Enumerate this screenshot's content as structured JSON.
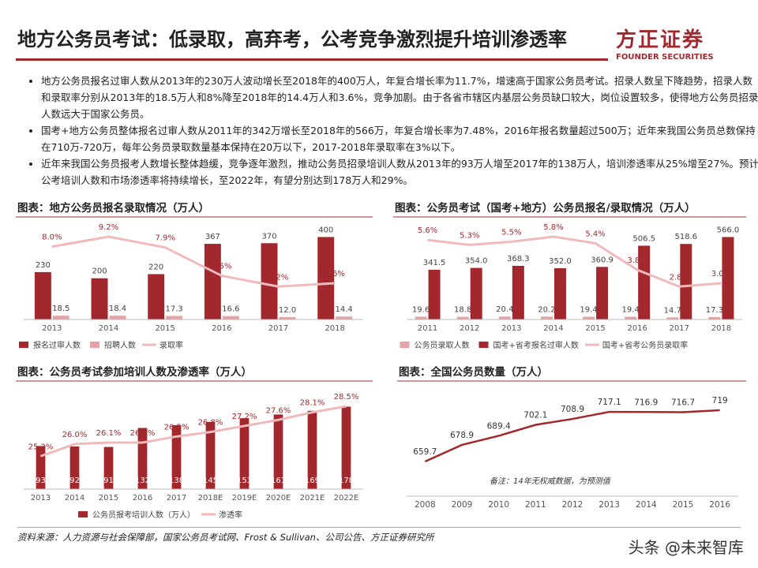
{
  "header": {
    "title": "地方公务员考试：低录取，高弃考，公考竞争激烈提升培训渗透率",
    "logo_cn": "方正证券",
    "logo_en": "FOUNDER SECURITIES"
  },
  "bullets": [
    "地方公务员报名过审人数从2013年的230万人波动增长至2018年的400万人，年复合增长率为11.7%，增速高于国家公务员考试。招录人数呈下降趋势，招录人数和录取率分别从2013年的18.5万人和8%降至2018年的14.4万人和3.6%，竞争加剧。由于各省市辖区内基层公务员缺口较大，岗位设置较多，使得地方公务员招录人数远大于国家公务员。",
    "国考+地方公务员整体报名过审人数从2011年的342万增长至2018年的566万，年复合增长率为7.48%，2016年报名数量超过500万；近年来我国公务员总数保持在710万-720万，每年公务员录取数量基本保持在20万以下，2017-2018年录取率在3%以下。",
    "近年来我国公务员报考人数增长整体趋缓，竞争逐年激烈，推动公务员招录培训人数从2013年的93万人增至2017年的138万人，培训渗透率从25%增至27%。预计公考培训人数和市场渗透率将持续增长，至2022年，有望分别达到178万人和29%。"
  ],
  "chart_data": [
    {
      "type": "bar",
      "title": "图表：地方公务员报名录取情况（万人）",
      "categories": [
        "2013",
        "2014",
        "2015",
        "2016",
        "2017",
        "2018"
      ],
      "series": [
        {
          "name": "报名过审人数",
          "color": "#a3282d",
          "values": [
            230,
            200,
            220,
            367,
            370,
            400
          ]
        },
        {
          "name": "招聘人数",
          "color": "#e6a3a6",
          "values": [
            18.5,
            18.4,
            17.3,
            16.6,
            12.0,
            14.4
          ],
          "value_labels": [
            "18.5",
            "18.4",
            "17.3",
            "16.6",
            "12.0",
            "14.4"
          ]
        },
        {
          "name": "录取率",
          "color": "#f0b9bc",
          "axis": "y2",
          "values": [
            8.0,
            9.2,
            7.9,
            4.5,
            3.2,
            3.6
          ],
          "value_labels": [
            "8.0%",
            "9.2%",
            "7.9%",
            "4.5%",
            "3.2%",
            "3.6%"
          ]
        }
      ]
    },
    {
      "type": "bar",
      "title": "图表：公务员考试（国考+地方）公务员报名/录取情况（万人）",
      "categories": [
        "2011",
        "2012",
        "2013",
        "2014",
        "2015",
        "2016",
        "2017",
        "2018"
      ],
      "series": [
        {
          "name": "公务员录取人数",
          "color": "#e6a3a6",
          "values": [
            19.6,
            18.8,
            20.4,
            20.2,
            19.4,
            19.4,
            14.7,
            17.3
          ]
        },
        {
          "name": "国考+省考报名过审人数",
          "color": "#a3282d",
          "values": [
            341.5,
            354.0,
            368.3,
            352.0,
            360.9,
            506.5,
            518.6,
            566.0
          ],
          "value_labels": [
            "341.5",
            "354.0",
            "368.3",
            "352.0",
            "360.9",
            "506.5",
            "518.6",
            "566.0"
          ]
        },
        {
          "name": "国考+省考公务员录取率",
          "color": "#f0b9bc",
          "axis": "y2",
          "values": [
            5.6,
            5.3,
            5.5,
            5.8,
            5.4,
            3.8,
            2.8,
            3.0
          ],
          "value_labels": [
            "5.6%",
            "5.3%",
            "5.5%",
            "5.8%",
            "5.4%",
            "3.8%",
            "2.8%",
            "3.0%"
          ]
        }
      ]
    },
    {
      "type": "bar",
      "title": "图表：公务员考试参加培训人数及渗透率（万人）",
      "categories": [
        "2013",
        "2014",
        "2015",
        "2016",
        "2017",
        "2018E",
        "2019E",
        "2020E",
        "2021E",
        "2022E"
      ],
      "series": [
        {
          "name": "公务员报考培训人数（万人）",
          "color": "#a3282d",
          "values": [
            93,
            92,
            91,
            132,
            138,
            145,
            153,
            161,
            169,
            178
          ]
        },
        {
          "name": "渗透率",
          "color": "#f0b9bc",
          "axis": "y2",
          "values": [
            25.2,
            26.0,
            26.1,
            26.1,
            26.5,
            26.8,
            27.2,
            27.6,
            28.1,
            28.5
          ],
          "value_labels": [
            "25.2%",
            "26.0%",
            "26.1%",
            "26.1%",
            "26.5%",
            "26.8%",
            "27.2%",
            "27.6%",
            "28.1%",
            "28.5%"
          ]
        }
      ]
    },
    {
      "type": "line",
      "title": "图表：全国公务员数量（万人）",
      "categories": [
        "2008",
        "2009",
        "2010",
        "2011",
        "2012",
        "2013",
        "2014",
        "2015",
        "2016"
      ],
      "series": [
        {
          "color": "#a3282d",
          "values": [
            659.7,
            678.9,
            689.4,
            702.1,
            708.9,
            717.1,
            716.9,
            716.7,
            719
          ]
        }
      ],
      "note": "备注：14年无权威数据，为预测值"
    }
  ],
  "source": "资料来源：人力资源与社会保障部，国家公务员考试网、Frost & Sullivan、公司公告、方正证券研究所",
  "watermark": "头条 @未来智库"
}
